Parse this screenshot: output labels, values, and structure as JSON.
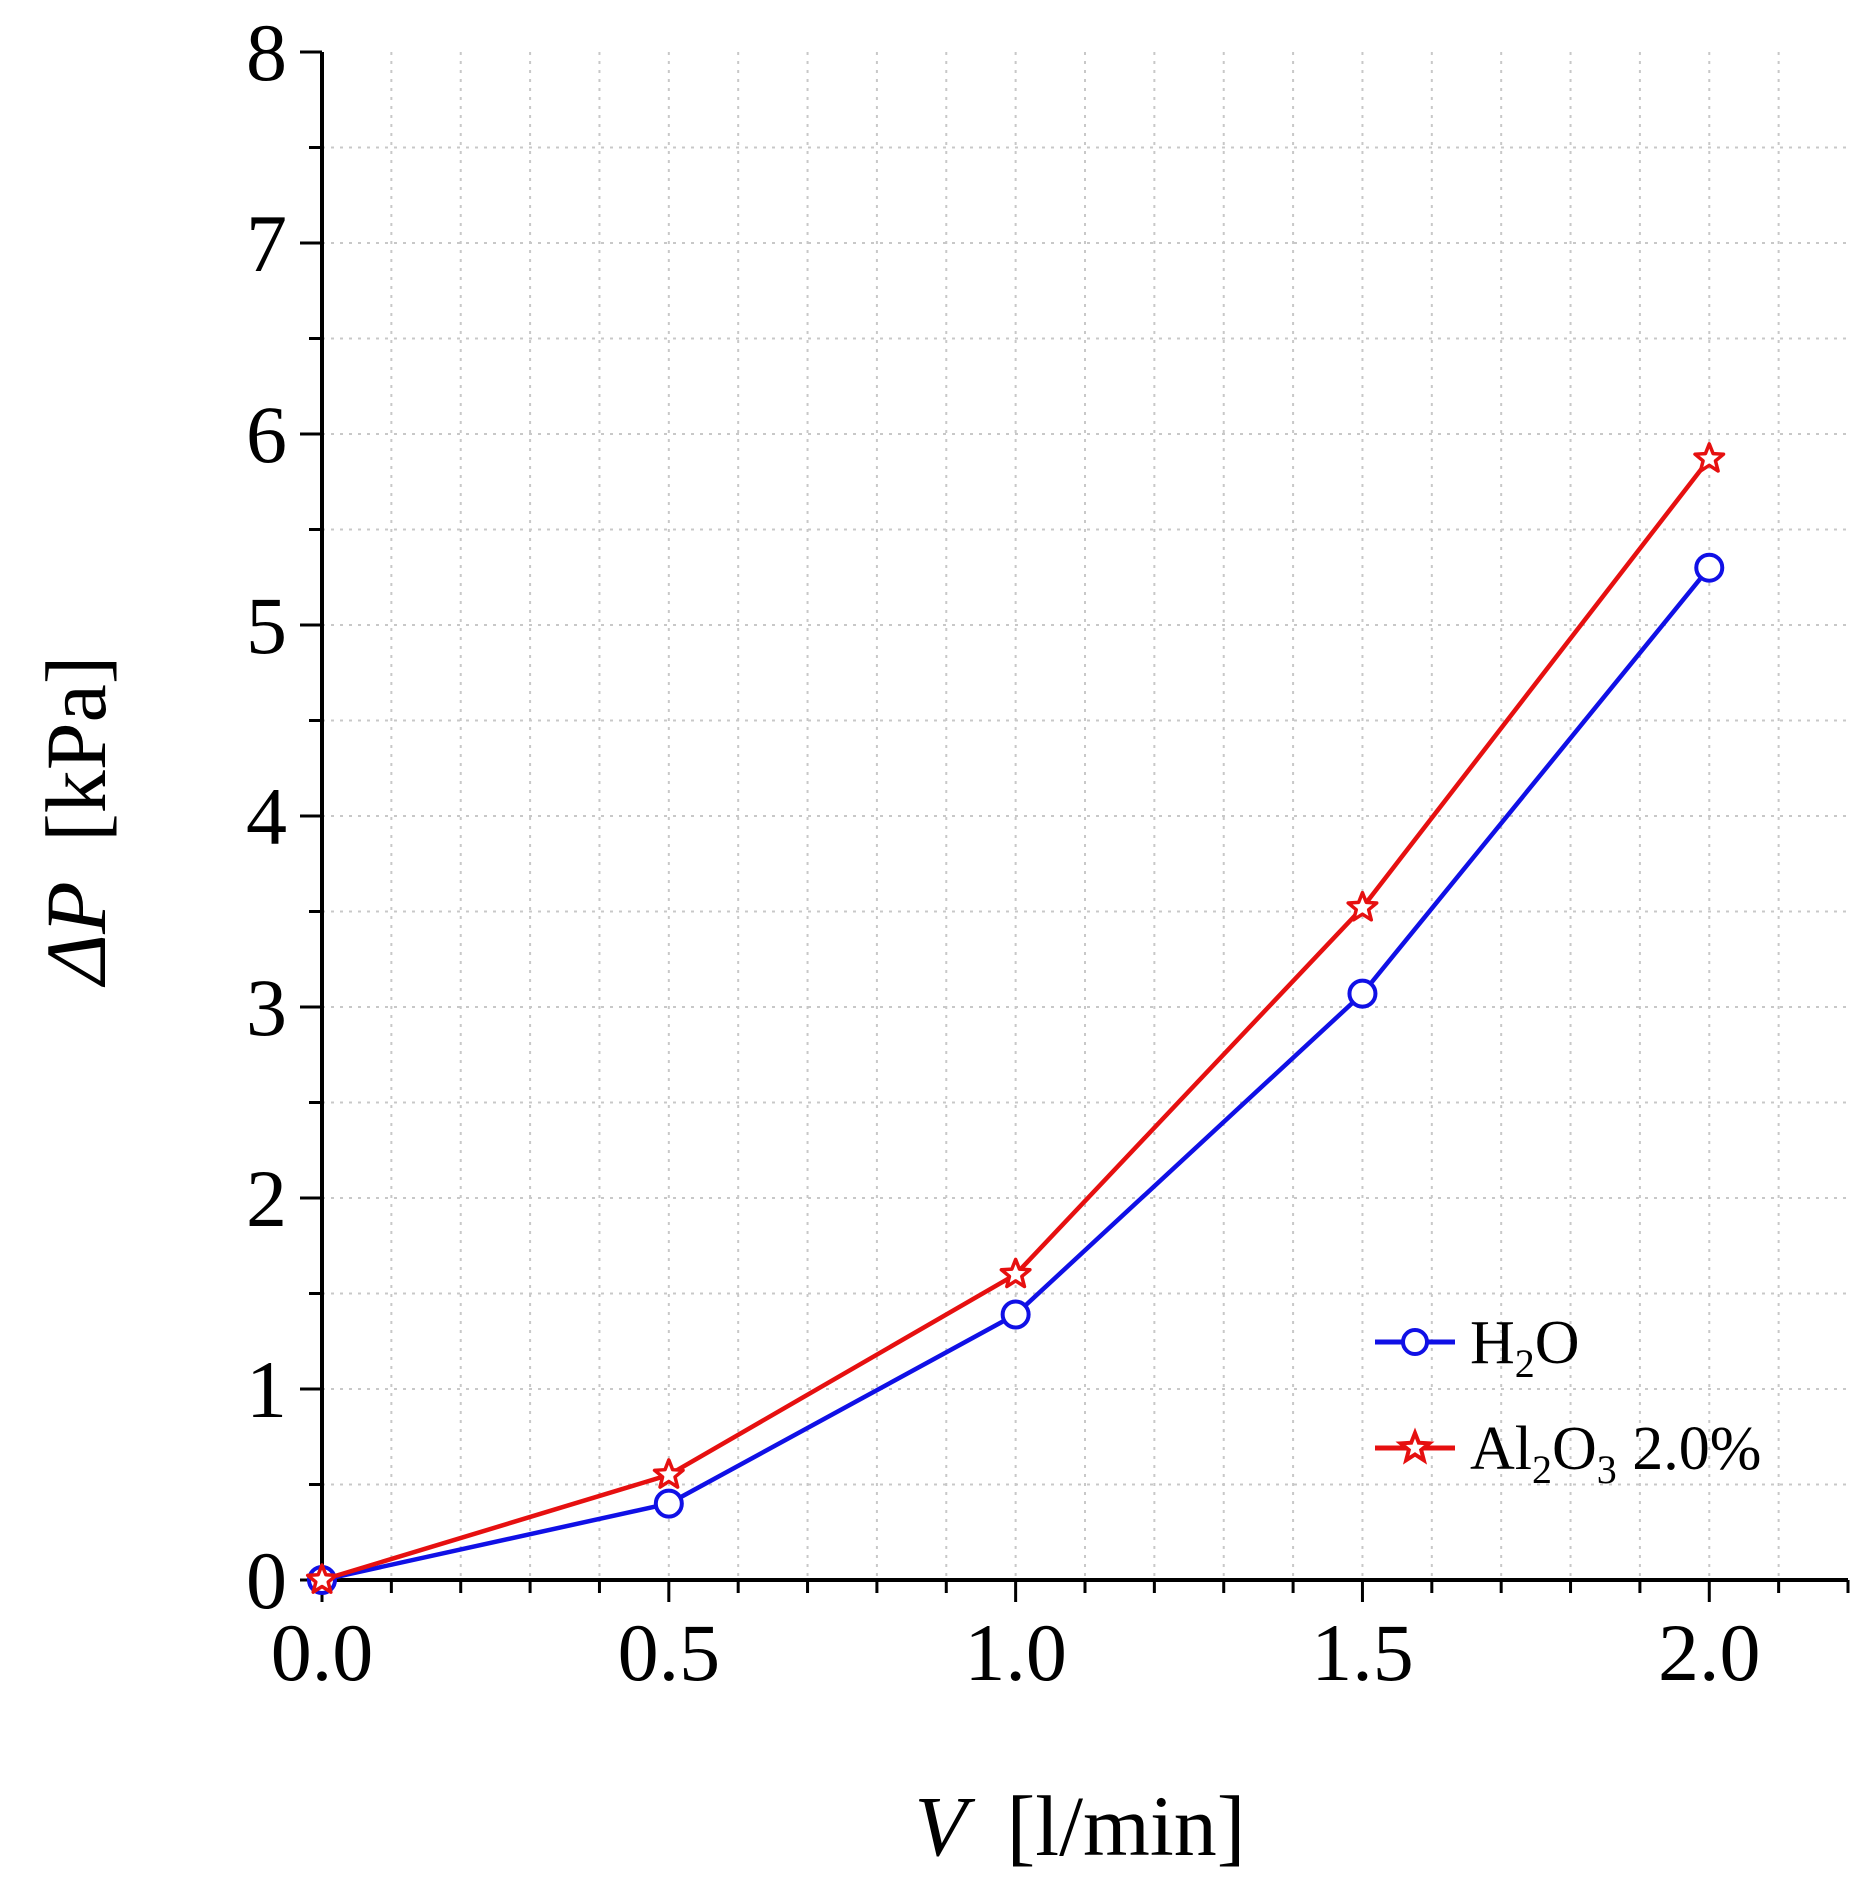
{
  "chart_data": {
    "type": "line",
    "xlabel": {
      "symbol": "V",
      "unit": "[l/min]"
    },
    "ylabel": {
      "symbol": "ΔP",
      "unit": "[kPa]"
    },
    "xlim": [
      0.0,
      2.2
    ],
    "ylim": [
      0,
      8
    ],
    "x_ticks": [
      0.0,
      0.5,
      1.0,
      1.5,
      2.0
    ],
    "x_tick_labels": [
      "0.0",
      "0.5",
      "1.0",
      "1.5",
      "2.0"
    ],
    "y_ticks": [
      0,
      1,
      2,
      3,
      4,
      5,
      6,
      7,
      8
    ],
    "y_tick_labels": [
      "0",
      "1",
      "2",
      "3",
      "4",
      "5",
      "6",
      "7",
      "8"
    ],
    "x_minor_step": 0.1,
    "y_minor_step": 0.5,
    "grid": true,
    "legend_position": "bottom-right",
    "x": [
      0.0,
      0.5,
      1.0,
      1.5,
      2.0
    ],
    "series": [
      {
        "name": "H2O",
        "legend": {
          "base": "H",
          "sub1": "2",
          "rest": "O"
        },
        "color": "#1010e6",
        "marker": "open-circle",
        "values": [
          0.0,
          0.4,
          1.39,
          3.07,
          5.3
        ]
      },
      {
        "name": "Al2O3 2.0%",
        "legend": {
          "base": "Al",
          "sub1": "2",
          "mid": "O",
          "sub2": "3",
          "rest": " 2.0%"
        },
        "color": "#e61010",
        "marker": "open-star",
        "values": [
          0.0,
          0.55,
          1.6,
          3.52,
          5.87
        ]
      }
    ]
  }
}
